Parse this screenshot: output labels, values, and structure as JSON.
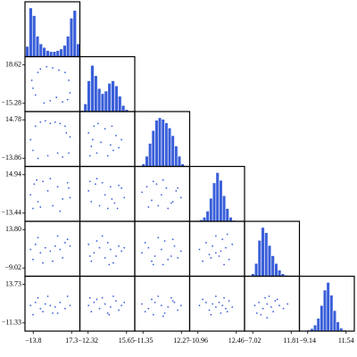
{
  "chart_data": {
    "type": "corner",
    "color": "#3a5fd9",
    "count_lim": [
      0,
      100
    ],
    "columns": [
      {
        "xlim": [
          -20.5,
          24.0
        ],
        "xticks": [
          {
            "value": -13.8,
            "label": "−13.8"
          },
          17.3
        ],
        "bins": [
          -20,
          -17.25,
          -14.5,
          -11.75,
          -9,
          -6.25,
          -3.5,
          -0.75,
          2,
          4.75,
          7.5,
          10.25,
          13,
          15.75,
          18.5,
          21.25,
          24
        ],
        "counts": [
          20,
          95,
          80,
          40,
          25,
          18,
          12,
          10,
          10,
          12,
          15,
          22,
          40,
          75,
          90,
          25
        ]
      },
      {
        "xlim": [
          -18.31,
          21.64
        ],
        "xticks": [
          {
            "value": -12.32,
            "label": "−12.32"
          },
          15.65
        ],
        "bins": [
          -18,
          -15.5,
          -13,
          -10.5,
          -8,
          -5.5,
          -3,
          -0.5,
          2,
          4.5,
          7,
          9.5,
          12,
          14.5,
          17,
          19.5,
          22
        ],
        "counts": [
          2,
          15,
          60,
          90,
          70,
          45,
          35,
          40,
          55,
          60,
          50,
          30,
          12,
          4,
          1,
          0
        ]
      },
      {
        "xlim": [
          -16.41,
          17.33
        ],
        "xticks": [
          {
            "value": -11.35,
            "label": "−11.35"
          },
          12.27
        ],
        "bins": [
          -16,
          -14,
          -12,
          -10,
          -8,
          -6,
          -4,
          -2,
          0,
          2,
          4,
          6,
          8,
          10,
          12,
          14,
          16
        ],
        "counts": [
          0,
          1,
          5,
          20,
          45,
          70,
          90,
          95,
          92,
          85,
          75,
          60,
          40,
          20,
          5,
          1
        ]
      },
      {
        "xlim": [
          -15.98,
          17.48
        ],
        "xticks": [
          {
            "value": -10.96,
            "label": "−10.96"
          },
          12.46
        ],
        "bins": [
          -16,
          -14,
          -12,
          -10,
          -8,
          -6,
          -4,
          -2,
          0,
          2,
          4,
          6,
          8,
          10,
          12,
          14,
          16
        ],
        "counts": [
          0,
          0,
          1,
          3,
          8,
          20,
          45,
          75,
          95,
          80,
          50,
          25,
          8,
          2,
          0,
          0
        ]
      },
      {
        "xlim": [
          -11.05,
          15.84
        ],
        "xticks": [
          {
            "value": -7.02,
            "label": "−7.02"
          },
          11.81
        ],
        "bins": [
          -11,
          -9.375,
          -7.75,
          -6.125,
          -4.5,
          -2.875,
          -1.25,
          0.375,
          2,
          3.625,
          5.25,
          6.875,
          8.5,
          10.125,
          11.75,
          13.375,
          15
        ],
        "counts": [
          0,
          1,
          5,
          25,
          70,
          95,
          85,
          60,
          40,
          25,
          12,
          5,
          2,
          1,
          0,
          0
        ]
      },
      {
        "xlim": [
          -13.57,
          15.97
        ],
        "xticks": [
          {
            "value": -9.14,
            "label": "−9.14"
          },
          11.54
        ],
        "bins": [
          -13,
          -11.25,
          -9.5,
          -7.75,
          -6,
          -4.25,
          -2.5,
          -0.75,
          1,
          2.75,
          4.5,
          6.25,
          8,
          9.75,
          11.5,
          13.25,
          15
        ],
        "counts": [
          0,
          1,
          2,
          5,
          12,
          25,
          50,
          80,
          95,
          70,
          40,
          18,
          6,
          2,
          0,
          0
        ]
      }
    ],
    "rows": [
      {
        "ylim": [
          -22.54,
          25.88
        ],
        "yticks": [
          {
            "value": 18.62,
            "label": "18.62"
          },
          {
            "value": -15.28,
            "label": "−15.28"
          }
        ]
      },
      {
        "ylim": [
          -20.0,
          20.92
        ],
        "yticks": [
          {
            "value": 14.78,
            "label": "14.78"
          },
          {
            "value": -13.86,
            "label": "−13.86"
          }
        ]
      },
      {
        "ylim": [
          -19.52,
          21.02
        ],
        "yticks": [
          {
            "value": 14.94,
            "label": "14.94"
          },
          {
            "value": -13.44,
            "label": "−13.44"
          }
        ]
      },
      {
        "ylim": [
          -13.91,
          18.69
        ],
        "yticks": [
          {
            "value": 13.8,
            "label": "13.80"
          },
          {
            "value": -9.02,
            "label": "−9.02"
          }
        ]
      },
      {
        "ylim": [
          -16.7,
          19.1
        ],
        "yticks": [
          {
            "value": 13.73,
            "label": "13.73"
          },
          {
            "value": -11.33,
            "label": "−11.33"
          }
        ]
      }
    ],
    "lower": [
      [
        {
          "x": [
            -15,
            -12,
            -10,
            -14,
            -8,
            -3,
            2,
            7,
            12,
            15,
            16,
            14,
            10,
            -5,
            0,
            5
          ],
          "y": [
            5,
            -8,
            12,
            -2,
            15,
            17,
            16,
            14,
            12,
            5,
            -6,
            -12,
            -14,
            -15,
            -13,
            -10
          ]
        }
      ],
      [
        {
          "x": [
            -16,
            -12,
            -8,
            -14,
            -4,
            0,
            4,
            8,
            12,
            16,
            15,
            10,
            -10,
            -2,
            6,
            13
          ],
          "y": [
            0,
            10,
            13,
            -8,
            14,
            12,
            13,
            12,
            10,
            2,
            -10,
            -13,
            -14,
            -12,
            -10,
            5
          ]
        },
        {
          "x": [
            -12,
            -10,
            -8,
            -5,
            0,
            4,
            8,
            12,
            -11,
            -6,
            2,
            6,
            10,
            -9,
            -3,
            5
          ],
          "y": [
            5,
            -5,
            10,
            12,
            8,
            -4,
            3,
            0,
            -12,
            -10,
            -12,
            -8,
            -6,
            0,
            -2,
            10
          ]
        }
      ],
      [
        {
          "x": [
            -16,
            -13,
            -10,
            -6,
            -2,
            2,
            6,
            10,
            14,
            16,
            -14,
            -8,
            0,
            8,
            15,
            -11
          ],
          "y": [
            0,
            8,
            -5,
            10,
            3,
            -8,
            6,
            -3,
            9,
            -2,
            -10,
            -9,
            12,
            -12,
            5,
            11
          ]
        },
        {
          "x": [
            -12,
            -10,
            -7,
            -4,
            0,
            4,
            7,
            10,
            14,
            -11,
            -6,
            2,
            9,
            -2,
            12,
            5
          ],
          "y": [
            3,
            -5,
            8,
            -8,
            0,
            6,
            -6,
            7,
            -2,
            10,
            12,
            -10,
            -10,
            9,
            5,
            -3
          ]
        },
        {
          "x": [
            -12,
            -9,
            -6,
            -3,
            0,
            3,
            6,
            9,
            12,
            -8,
            -2,
            4,
            10,
            -5,
            1,
            7
          ],
          "y": [
            2,
            6,
            -4,
            8,
            0,
            5,
            -6,
            3,
            -2,
            -9,
            -8,
            -10,
            5,
            10,
            11,
            -5
          ]
        }
      ],
      [
        {
          "x": [
            -16,
            -12,
            -8,
            -4,
            0,
            4,
            8,
            12,
            16,
            -14,
            -6,
            2,
            10,
            14,
            -10,
            6
          ],
          "y": [
            2,
            5,
            0,
            3,
            1,
            4,
            2,
            6,
            4,
            -4,
            -6,
            -5,
            -3,
            8,
            9,
            10
          ]
        },
        {
          "x": [
            -12,
            -8,
            -4,
            0,
            4,
            8,
            12,
            -10,
            -6,
            2,
            6,
            10,
            -2,
            14,
            -11,
            3
          ],
          "y": [
            5,
            0,
            3,
            -3,
            2,
            -2,
            1,
            -5,
            7,
            6,
            -6,
            4,
            10,
            3,
            -2,
            -7
          ]
        },
        {
          "x": [
            -12,
            -8,
            -4,
            0,
            4,
            8,
            12,
            -10,
            -6,
            2,
            6,
            10,
            -2,
            -5,
            1,
            7
          ],
          "y": [
            0,
            3,
            -2,
            2,
            -4,
            4,
            1,
            6,
            -5,
            7,
            -2,
            -3,
            9,
            -7,
            -7,
            8
          ]
        },
        {
          "x": [
            -10,
            -6,
            -4,
            -2,
            0,
            2,
            4,
            6,
            8,
            10,
            -8,
            3,
            5,
            0,
            7,
            -3
          ],
          "y": [
            2,
            6,
            -1,
            4,
            0,
            -2,
            8,
            3,
            -4,
            5,
            -5,
            1,
            -7,
            10,
            11,
            -3
          ]
        }
      ],
      [
        {
          "x": [
            -16,
            -12,
            -8,
            -4,
            0,
            4,
            8,
            12,
            16,
            -14,
            -10,
            -2,
            6,
            14,
            2,
            -6
          ],
          "y": [
            0,
            2,
            -2,
            1,
            0,
            -1,
            2,
            -2,
            0,
            -6,
            5,
            6,
            -5,
            6,
            -5,
            -4
          ]
        },
        {
          "x": [
            -12,
            -8,
            -4,
            0,
            4,
            8,
            12,
            -10,
            -6,
            2,
            6,
            10,
            -2,
            14,
            -11,
            3
          ],
          "y": [
            0,
            2,
            -2,
            1,
            -1,
            3,
            0,
            -4,
            4,
            -5,
            6,
            -3,
            5,
            2,
            5,
            -6
          ]
        },
        {
          "x": [
            -12,
            -8,
            -4,
            0,
            4,
            8,
            12,
            -10,
            -6,
            2,
            6,
            10,
            -2,
            -5,
            1,
            7
          ],
          "y": [
            1,
            -2,
            2,
            0,
            -1,
            2,
            0,
            -4,
            4,
            -5,
            5,
            -3,
            6,
            -6,
            -7,
            3
          ]
        },
        {
          "x": [
            -10,
            -6,
            -4,
            -2,
            0,
            2,
            4,
            6,
            8,
            10,
            -8,
            3,
            5,
            0,
            7,
            -3
          ],
          "y": [
            0,
            2,
            -3,
            1,
            -1,
            2,
            0,
            -2,
            3,
            -1,
            4,
            -5,
            5,
            6,
            -4,
            -6
          ]
        },
        {
          "x": [
            -6,
            -4,
            -2,
            0,
            2,
            4,
            6,
            8,
            -5,
            -1,
            3,
            1,
            5,
            -3,
            10,
            0
          ],
          "y": [
            0,
            2,
            -2,
            1,
            -1,
            3,
            0,
            -2,
            -5,
            5,
            -4,
            6,
            4,
            -6,
            1,
            -8
          ]
        }
      ]
    ]
  }
}
